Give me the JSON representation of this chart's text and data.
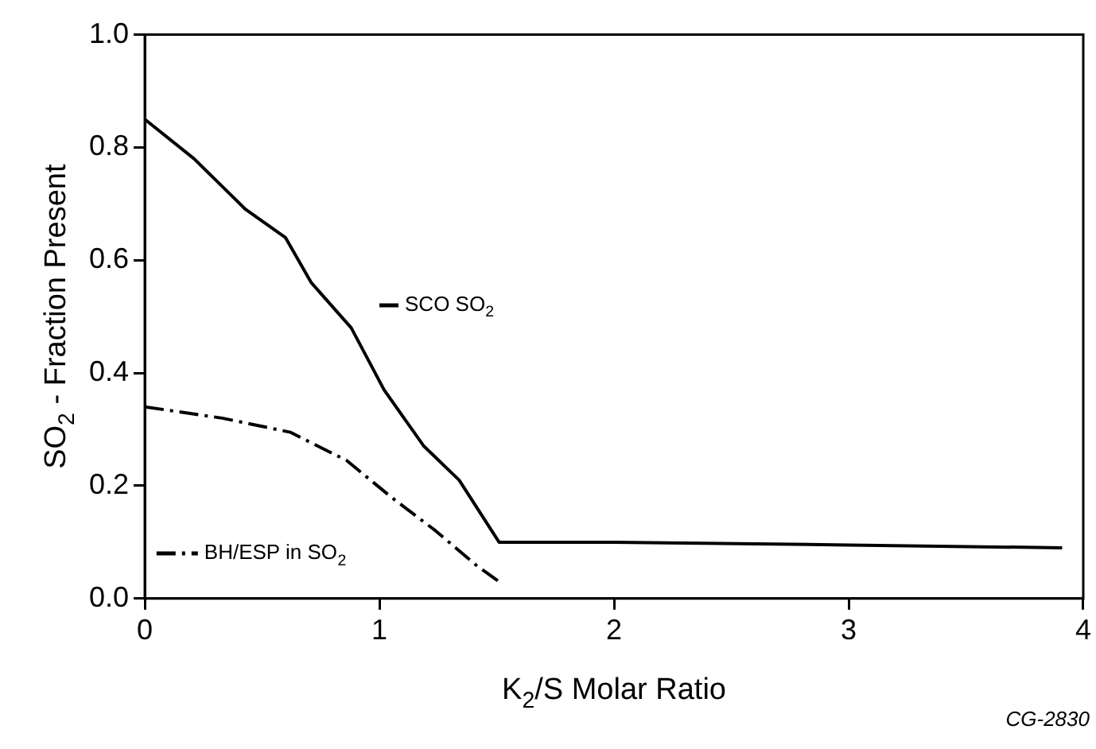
{
  "chart_data": {
    "type": "line",
    "xlabel": "K$_{2}$/S Molar Ratio",
    "ylabel": "SO$_{2}$ - Fraction Present",
    "xlim": [
      0,
      4
    ],
    "xticks": [
      0,
      1,
      2,
      3,
      4
    ],
    "ylim": [
      0,
      1
    ],
    "yticks": [
      {
        "value": 0,
        "label": "0.0"
      },
      0.2,
      0.4,
      0.6,
      0.8,
      {
        "value": 1,
        "label": "1.0"
      }
    ],
    "grid": false,
    "marker": "none",
    "legend": "bottom left",
    "series": [
      {
        "name": "SCO SO$_{2}$",
        "color": "#000000",
        "line_style": "solid",
        "x": [
          0,
          0.21,
          0.43,
          0.6,
          0.71,
          0.88,
          1.02,
          1.19,
          1.34,
          1.51,
          2,
          3,
          3.91
        ],
        "values": [
          0.85,
          0.78,
          0.69,
          0.64,
          0.56,
          0.48,
          0.37,
          0.27,
          0.21,
          0.1,
          0.1,
          0.095,
          0.09
        ]
      },
      {
        "name": "BH/ESP in SO$_{2}$",
        "color": "#000000",
        "line_style": "dashed",
        "x": [
          0,
          0.33,
          0.62,
          0.86,
          1.05,
          1.24,
          1.41,
          1.51
        ],
        "values": [
          0.34,
          0.32,
          0.295,
          0.245,
          0.18,
          0.12,
          0.06,
          0.03
        ]
      }
    ],
    "annotations": [
      "CG-2830"
    ]
  }
}
